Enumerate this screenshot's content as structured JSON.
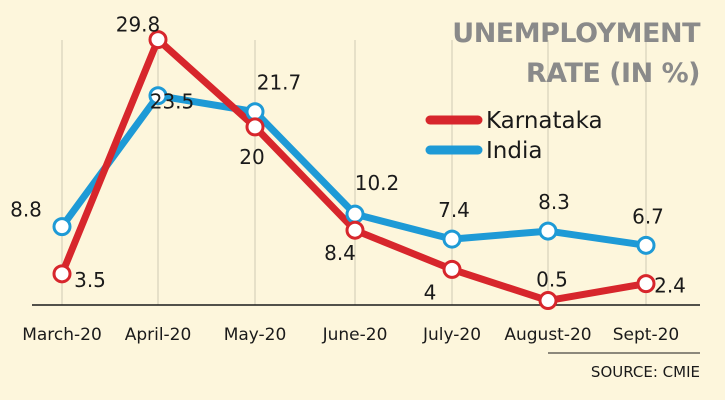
{
  "chart_data": {
    "type": "line",
    "title_line1": "UNEMPLOYMENT",
    "title_line2": "RATE (IN %)",
    "categories": [
      "March-20",
      "April-20",
      "May-20",
      "June-20",
      "July-20",
      "August-20",
      "Sept-20"
    ],
    "series": [
      {
        "name": "Karnataka",
        "color": "#d7262c",
        "values": [
          3.5,
          29.8,
          20,
          8.4,
          4,
          0.5,
          2.4
        ]
      },
      {
        "name": "India",
        "color": "#1e9ad6",
        "values": [
          8.8,
          23.5,
          21.7,
          10.2,
          7.4,
          8.3,
          6.7
        ]
      }
    ],
    "ylim": [
      0,
      32
    ],
    "grid": "vertical",
    "legend_position": "top-right",
    "source": "SOURCE: CMIE"
  }
}
